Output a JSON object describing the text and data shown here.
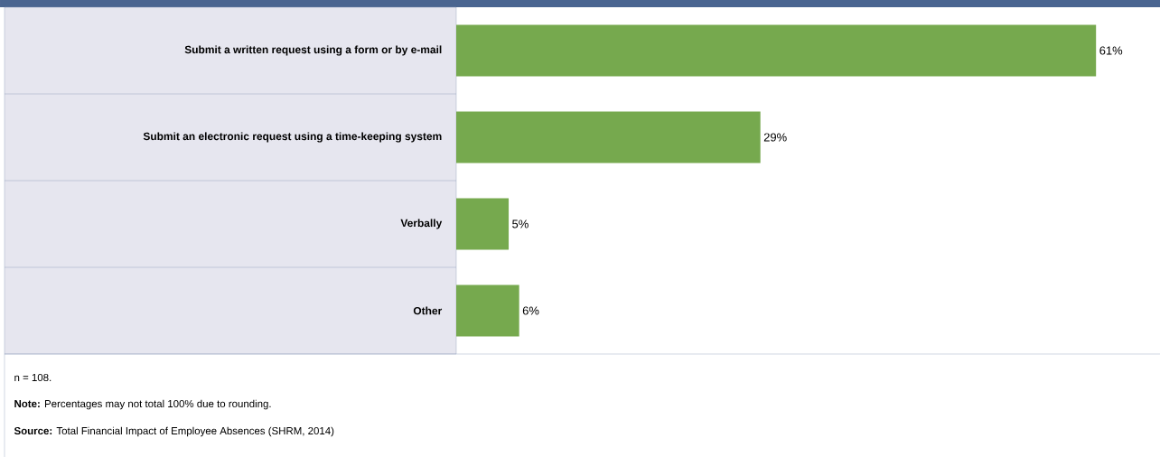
{
  "chart_data": {
    "type": "bar",
    "orientation": "horizontal",
    "categories": [
      "Submit a written request using a form or by e-mail",
      "Submit an electronic request using a time-keeping system",
      "Verbally",
      "Other"
    ],
    "values": [
      61,
      29,
      5,
      6
    ],
    "value_labels": [
      "61%",
      "29%",
      "5%",
      "6%"
    ],
    "color": "#76a94e",
    "annotations": [
      "n = 108.",
      "**Note:** Percentages may not total 100% due to rounding.",
      "**Source:** Total Financial Impact of Employee Absences (SHRM, 2014)"
    ]
  }
}
